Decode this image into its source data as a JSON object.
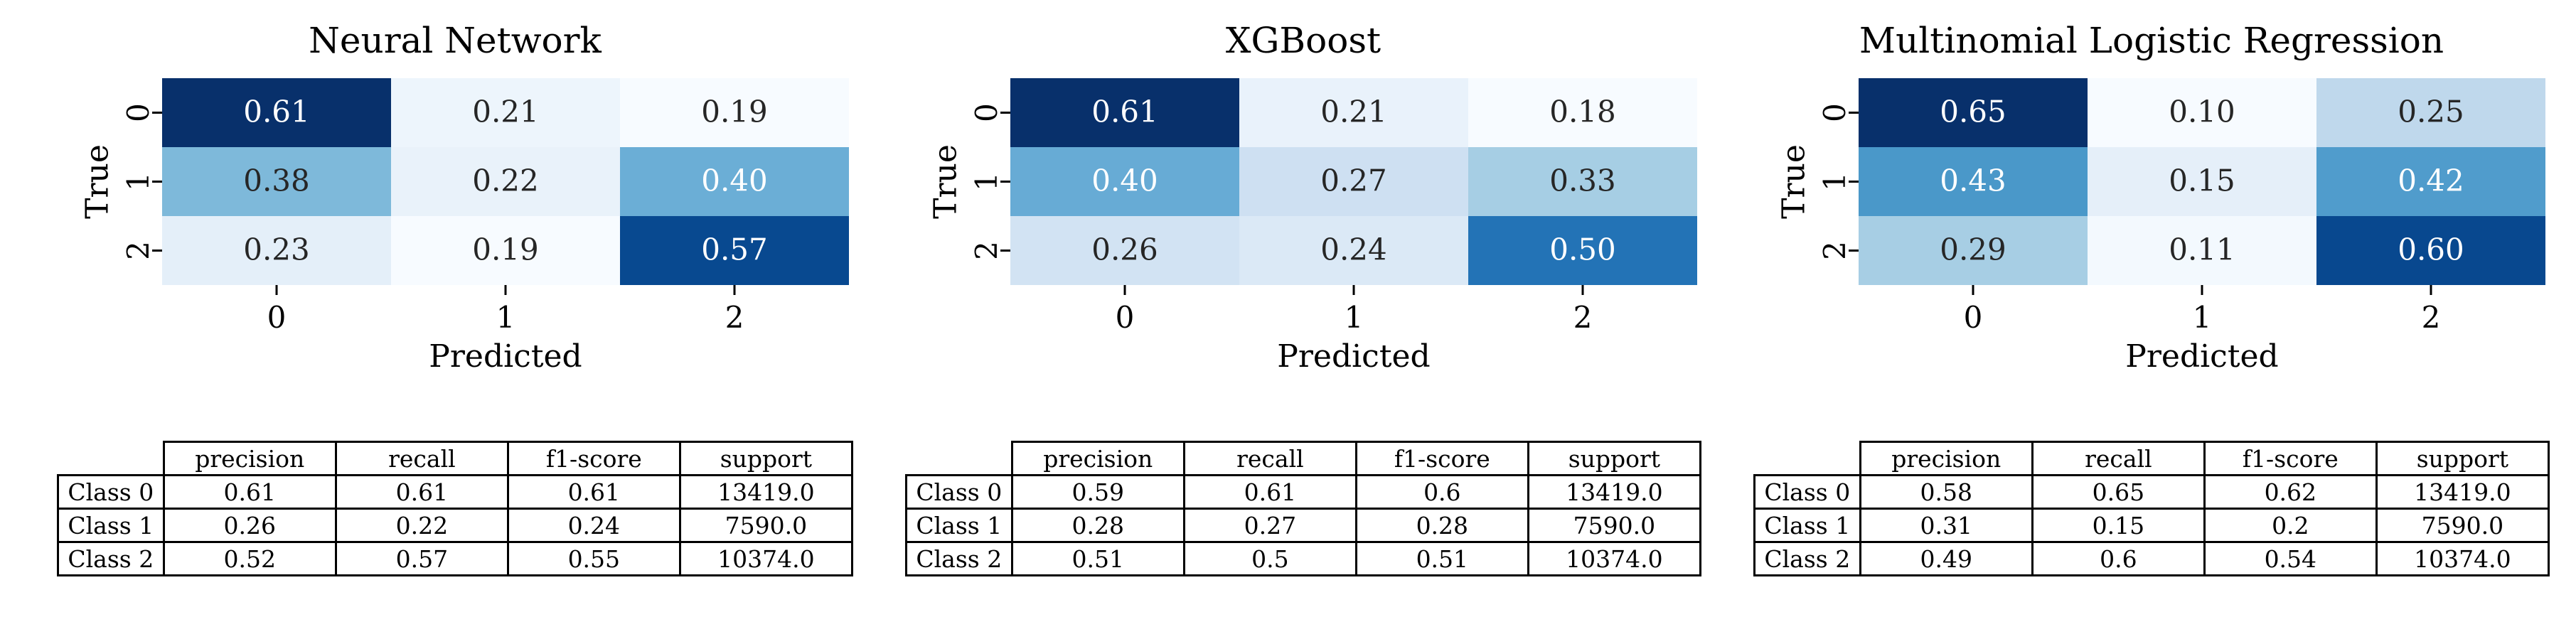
{
  "chart_data": [
    {
      "type": "heatmap",
      "title": "Neural Network",
      "xlabel": "Predicted",
      "ylabel": "True",
      "x_ticks": [
        "0",
        "1",
        "2"
      ],
      "y_ticks": [
        "0",
        "1",
        "2"
      ],
      "colormap": "Blues",
      "matrix": [
        [
          0.61,
          0.21,
          0.19
        ],
        [
          0.38,
          0.22,
          0.4
        ],
        [
          0.23,
          0.19,
          0.57
        ]
      ],
      "table": {
        "columns": [
          "precision",
          "recall",
          "f1-score",
          "support"
        ],
        "rows": [
          {
            "label": "Class 0",
            "values": [
              "0.61",
              "0.61",
              "0.61",
              "13419.0"
            ]
          },
          {
            "label": "Class 1",
            "values": [
              "0.26",
              "0.22",
              "0.24",
              "7590.0"
            ]
          },
          {
            "label": "Class 2",
            "values": [
              "0.52",
              "0.57",
              "0.55",
              "10374.0"
            ]
          }
        ]
      }
    },
    {
      "type": "heatmap",
      "title": "XGBoost",
      "xlabel": "Predicted",
      "ylabel": "True",
      "x_ticks": [
        "0",
        "1",
        "2"
      ],
      "y_ticks": [
        "0",
        "1",
        "2"
      ],
      "colormap": "Blues",
      "matrix": [
        [
          0.61,
          0.21,
          0.18
        ],
        [
          0.4,
          0.27,
          0.33
        ],
        [
          0.26,
          0.24,
          0.5
        ]
      ],
      "table": {
        "columns": [
          "precision",
          "recall",
          "f1-score",
          "support"
        ],
        "rows": [
          {
            "label": "Class 0",
            "values": [
              "0.59",
              "0.61",
              "0.6",
              "13419.0"
            ]
          },
          {
            "label": "Class 1",
            "values": [
              "0.28",
              "0.27",
              "0.28",
              "7590.0"
            ]
          },
          {
            "label": "Class 2",
            "values": [
              "0.51",
              "0.5",
              "0.51",
              "10374.0"
            ]
          }
        ]
      }
    },
    {
      "type": "heatmap",
      "title": "Multinomial Logistic Regression",
      "xlabel": "Predicted",
      "ylabel": "True",
      "x_ticks": [
        "0",
        "1",
        "2"
      ],
      "y_ticks": [
        "0",
        "1",
        "2"
      ],
      "colormap": "Blues",
      "matrix": [
        [
          0.65,
          0.1,
          0.25
        ],
        [
          0.43,
          0.15,
          0.42
        ],
        [
          0.29,
          0.11,
          0.6
        ]
      ],
      "table": {
        "columns": [
          "precision",
          "recall",
          "f1-score",
          "support"
        ],
        "rows": [
          {
            "label": "Class 0",
            "values": [
              "0.58",
              "0.65",
              "0.62",
              "13419.0"
            ]
          },
          {
            "label": "Class 1",
            "values": [
              "0.31",
              "0.15",
              "0.2",
              "7590.0"
            ]
          },
          {
            "label": "Class 2",
            "values": [
              "0.49",
              "0.6",
              "0.54",
              "10374.0"
            ]
          }
        ]
      }
    }
  ]
}
